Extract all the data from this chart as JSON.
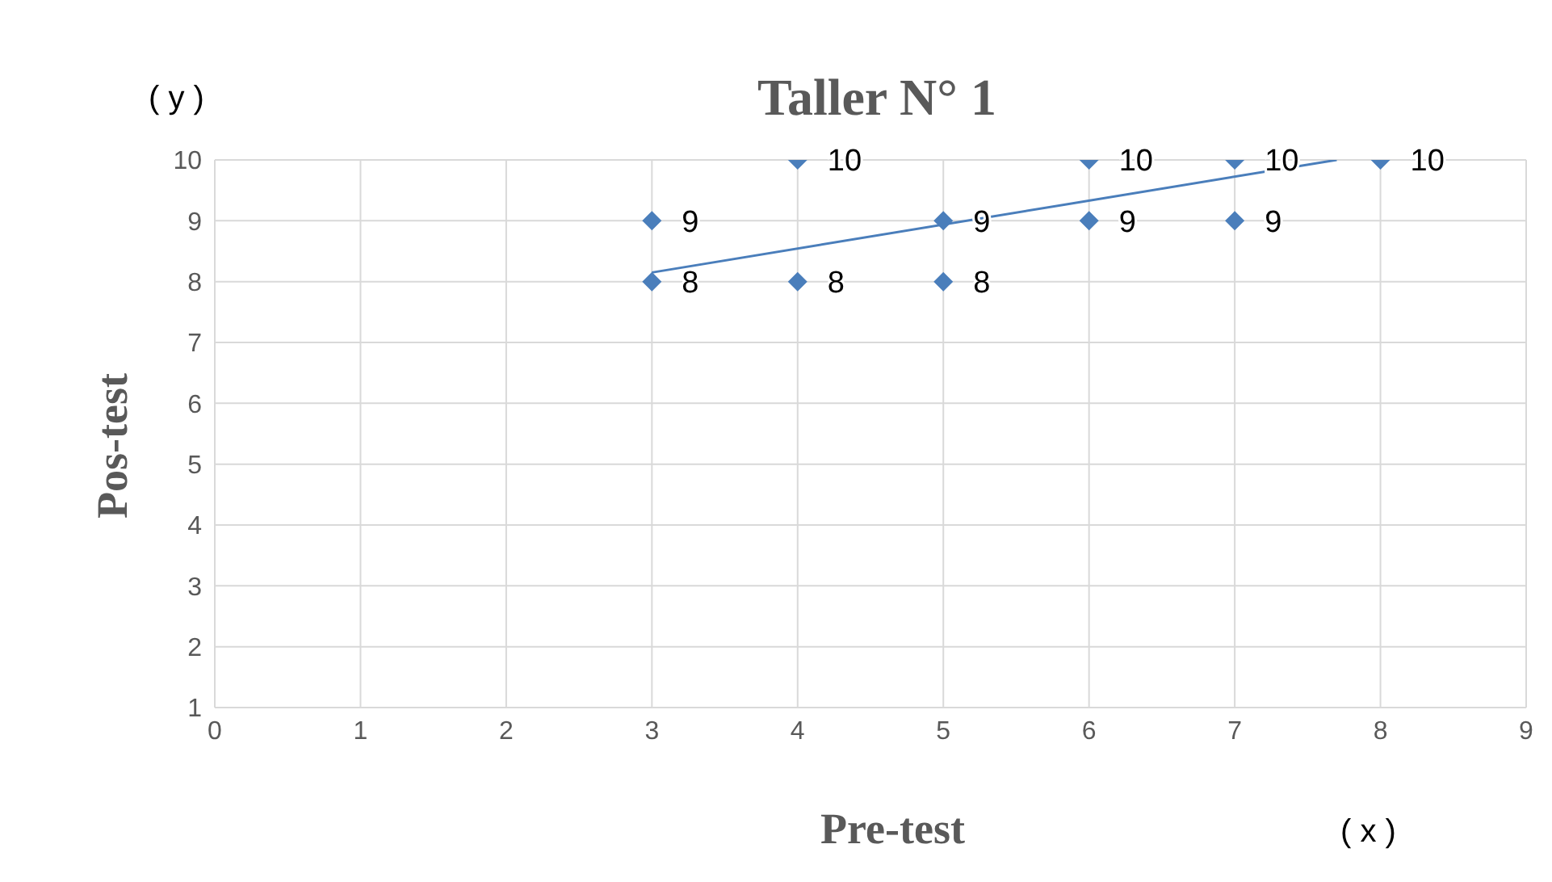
{
  "chart_data": {
    "type": "scatter",
    "title": "Taller N° 1",
    "xlabel": "Pre-test",
    "ylabel": "Pos-test",
    "annotations": [
      "( y )",
      "( x )"
    ],
    "xlim": [
      0,
      9
    ],
    "xticks": [
      0,
      1,
      2,
      3,
      4,
      5,
      6,
      7,
      8,
      9
    ],
    "ylim": [
      1,
      10
    ],
    "yticks": [
      1,
      2,
      3,
      4,
      5,
      6,
      7,
      8,
      9,
      10
    ],
    "grid": true,
    "series": [
      {
        "color": "#4a7ebb",
        "marker": "diamond",
        "x": [
          3,
          3,
          4,
          4,
          5,
          5,
          6,
          6,
          7,
          7,
          8
        ],
        "values": [
          9,
          8,
          10,
          8,
          9,
          8,
          10,
          9,
          10,
          9,
          10
        ],
        "value_labels": [
          "9",
          "8",
          "10",
          "8",
          "9",
          "8",
          "10",
          "9",
          "10",
          "9",
          "10"
        ]
      },
      {
        "type": "line",
        "color": "#4a7ebb",
        "marker": "none",
        "x": [
          3,
          7.7
        ],
        "values": [
          8.15,
          10
        ]
      }
    ]
  }
}
